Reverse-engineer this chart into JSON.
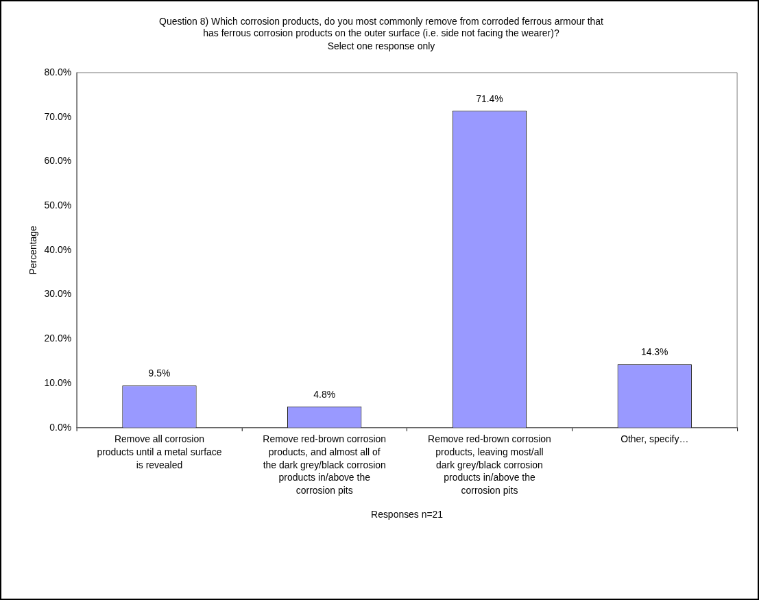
{
  "chart_data": {
    "type": "bar",
    "title": "Question 8) Which corrosion products, do you most commonly remove from corroded ferrous armour that\nhas ferrous corrosion products on the outer surface (i.e. side not facing the wearer)?",
    "subtitle": "Select one response only",
    "xlabel": "Responses n=21",
    "ylabel": "Percentage",
    "categories": [
      "Remove all corrosion products until a metal surface is revealed",
      "Remove red-brown corrosion products, and almost all of the dark grey/black corrosion products in/above the corrosion pits",
      "Remove red-brown corrosion products, leaving most/all dark grey/black corrosion products in/above the corrosion pits",
      "Other, specify…"
    ],
    "values": [
      9.5,
      4.8,
      71.4,
      14.3
    ],
    "value_labels": [
      "9.5%",
      "4.8%",
      "71.4%",
      "14.3%"
    ],
    "color": "#9999ff",
    "ylim": [
      0,
      80
    ],
    "yticks": [
      {
        "value": 0,
        "label": "0.0%"
      },
      {
        "value": 10,
        "label": "10.0%"
      },
      {
        "value": 20,
        "label": "20.0%"
      },
      {
        "value": 30,
        "label": "30.0%"
      },
      {
        "value": 40,
        "label": "40.0%"
      },
      {
        "value": 50,
        "label": "50.0%"
      },
      {
        "value": 60,
        "label": "60.0%"
      },
      {
        "value": 70,
        "label": "70.0%"
      },
      {
        "value": 80,
        "label": "80.0%"
      }
    ],
    "grid": false,
    "legend": false
  }
}
